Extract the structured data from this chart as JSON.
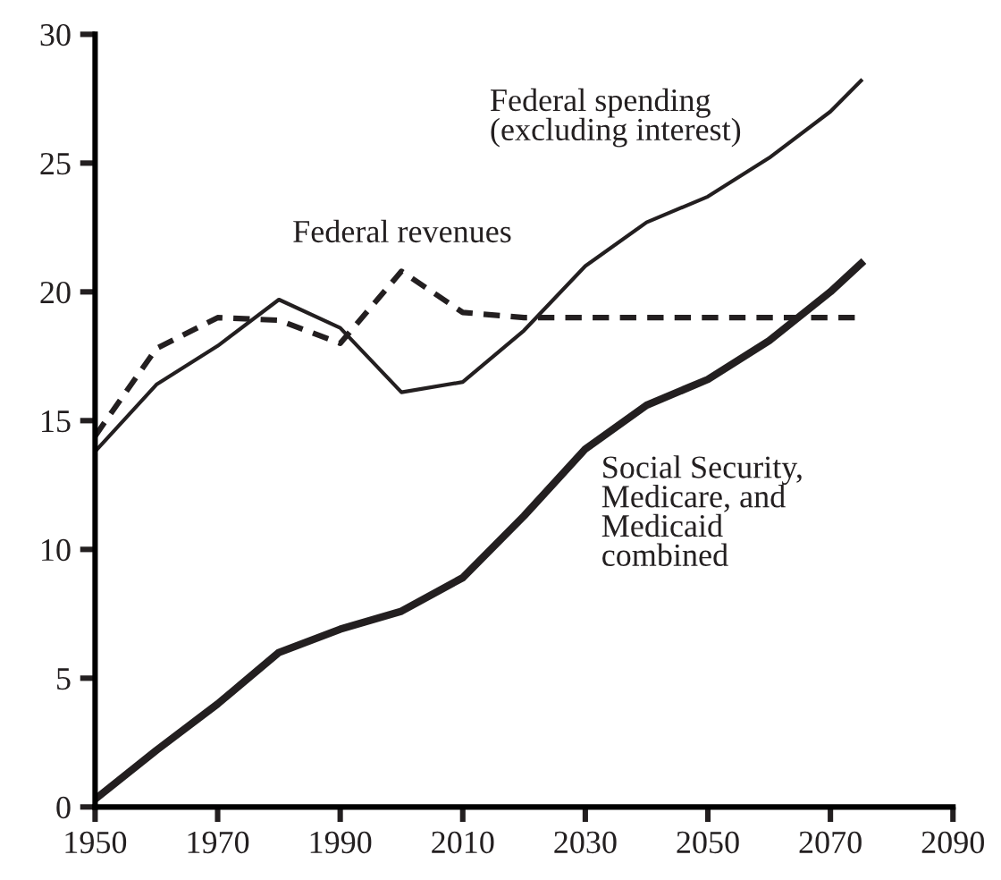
{
  "chart_data": {
    "type": "line",
    "x": [
      1950,
      1960,
      1970,
      1980,
      1990,
      2000,
      2010,
      2020,
      2030,
      2040,
      2050,
      2060,
      2070,
      2075
    ],
    "series": [
      {
        "name": "Federal spending\n(excluding interest)",
        "color": "#231f20",
        "line_style": "solid",
        "values": [
          13.8,
          16.4,
          17.9,
          19.7,
          18.6,
          16.1,
          16.5,
          18.5,
          21.0,
          22.7,
          23.7,
          25.2,
          27.0,
          28.2
        ]
      },
      {
        "name": "Federal revenues",
        "color": "#231f20",
        "line_style": "dashed",
        "values": [
          14.4,
          17.8,
          19.0,
          18.9,
          18.0,
          20.8,
          19.2,
          19.0,
          19.0,
          19.0,
          19.0,
          19.0,
          19.0,
          19.0
        ]
      },
      {
        "name": "Social Security,\nMedicare, and\nMedicaid\ncombined",
        "color": "#231f20",
        "line_style": "solid",
        "values": [
          0.3,
          2.2,
          4.0,
          6.0,
          6.9,
          7.6,
          8.9,
          11.3,
          13.9,
          15.6,
          16.6,
          18.1,
          20.0,
          21.1
        ]
      }
    ],
    "xlim": [
      1950,
      2090
    ],
    "xticks": [
      1950,
      1970,
      1990,
      2010,
      2030,
      2050,
      2070,
      2090
    ],
    "ylim": [
      0,
      30
    ],
    "yticks": [
      0,
      5,
      10,
      15,
      20,
      25,
      30
    ],
    "grid": false,
    "legend": false,
    "marker": "none"
  }
}
